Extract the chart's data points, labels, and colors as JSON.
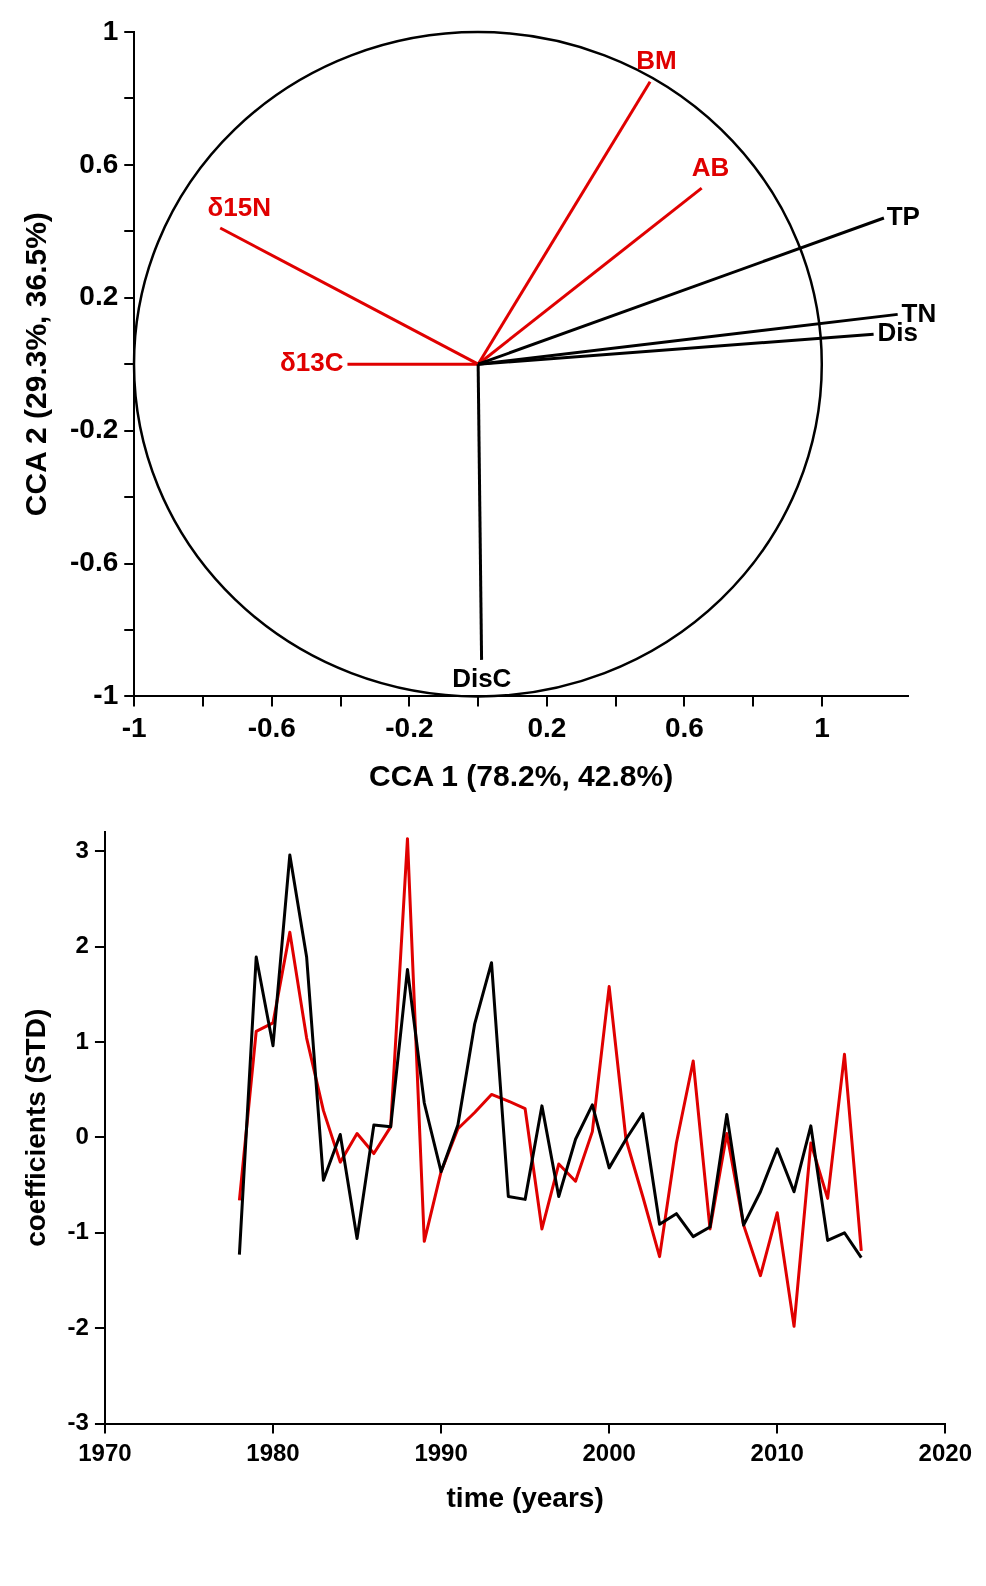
{
  "chart_data": [
    {
      "type": "line",
      "xlabel": "CCA 1 (78.2%, 42.8%)",
      "ylabel": "CCA 2 (29.3%, 36.5%)",
      "xlim": [
        -1,
        1.25
      ],
      "xticks": [
        -1,
        {
          "value": -0.8,
          "label": null
        },
        -0.6,
        {
          "value": -0.4,
          "label": null
        },
        -0.2,
        {
          "value": 0,
          "label": null
        },
        0.2,
        {
          "value": 0.4,
          "label": null
        },
        0.6,
        {
          "value": 0.8,
          "label": null
        },
        1
      ],
      "ylim": [
        -1,
        1
      ],
      "yticks": [
        -1,
        {
          "value": -0.8,
          "label": null
        },
        -0.6,
        {
          "value": -0.4,
          "label": null
        },
        -0.2,
        {
          "value": 0,
          "label": null
        },
        0.2,
        {
          "value": 0.4,
          "label": null
        },
        0.6,
        {
          "value": 0.8,
          "label": null
        },
        1
      ],
      "series": [
        {
          "name": "BM",
          "color": "#e00000",
          "x": [
            0,
            0.5
          ],
          "values": [
            0,
            0.85
          ]
        },
        {
          "name": "AB",
          "color": "#e00000",
          "x": [
            0,
            0.65
          ],
          "values": [
            0,
            0.53
          ]
        },
        {
          "name": "δ15N",
          "color": "#e00000",
          "x": [
            0,
            -0.75
          ],
          "values": [
            0,
            0.41
          ]
        },
        {
          "name": "δ13C",
          "color": "#e00000",
          "x": [
            0,
            -0.38
          ],
          "values": [
            0,
            0
          ]
        },
        {
          "name": "TP",
          "color": "#000000",
          "x": [
            0,
            1.18
          ],
          "values": [
            0,
            0.44
          ]
        },
        {
          "name": "TN",
          "color": "#000000",
          "x": [
            0,
            1.22
          ],
          "values": [
            0,
            0.15
          ]
        },
        {
          "name": "Dis",
          "color": "#000000",
          "x": [
            0,
            1.15
          ],
          "values": [
            0,
            0.09
          ]
        },
        {
          "name": "DisC",
          "color": "#000000",
          "x": [
            0,
            0.01
          ],
          "values": [
            0,
            -0.89
          ]
        }
      ]
    },
    {
      "type": "line",
      "xlabel": "time (years)",
      "ylabel": "coefficients (STD)",
      "x": [
        1978,
        1979,
        1980,
        1981,
        1982,
        1983,
        1984,
        1985,
        1986,
        1987,
        1988,
        1989,
        1990,
        1991,
        1992,
        1993,
        1994,
        1995,
        1996,
        1997,
        1998,
        1999,
        2000,
        2001,
        2002,
        2003,
        2004,
        2005,
        2006,
        2007,
        2008,
        2009,
        2010,
        2011,
        2012,
        2013,
        2014,
        2015
      ],
      "xlim": [
        1970,
        2020
      ],
      "xticks": [
        1970,
        1980,
        1990,
        2000,
        2010,
        2020
      ],
      "ylim": [
        -3,
        3.2
      ],
      "yticks": [
        -3,
        -2,
        -1,
        0,
        1,
        2,
        3
      ],
      "series": [
        {
          "color": "#e00000",
          "values": [
            -0.66,
            1.11,
            1.2,
            2.15,
            1.04,
            0.28,
            -0.26,
            0.04,
            -0.17,
            0.11,
            3.13,
            -1.09,
            -0.36,
            0.09,
            0.26,
            0.45,
            0.38,
            0.3,
            -0.96,
            -0.28,
            -0.46,
            0.06,
            1.58,
            -0.02,
            -0.62,
            -1.25,
            -0.06,
            0.8,
            -0.96,
            0.04,
            -0.92,
            -1.45,
            -0.79,
            -1.98,
            -0.06,
            -0.64,
            0.87,
            -1.19
          ]
        },
        {
          "color": "#000000",
          "values": [
            -1.23,
            1.89,
            0.96,
            2.96,
            1.89,
            -0.45,
            0.03,
            -1.06,
            0.13,
            0.11,
            1.76,
            0.36,
            -0.36,
            0.13,
            1.19,
            1.83,
            -0.62,
            -0.65,
            0.33,
            -0.62,
            -0.02,
            0.34,
            -0.32,
            -0.02,
            0.25,
            -0.91,
            -0.8,
            -1.04,
            -0.94,
            0.24,
            -0.92,
            -0.57,
            -0.12,
            -0.57,
            0.12,
            -1.08,
            -1,
            -1.26
          ]
        }
      ]
    }
  ]
}
